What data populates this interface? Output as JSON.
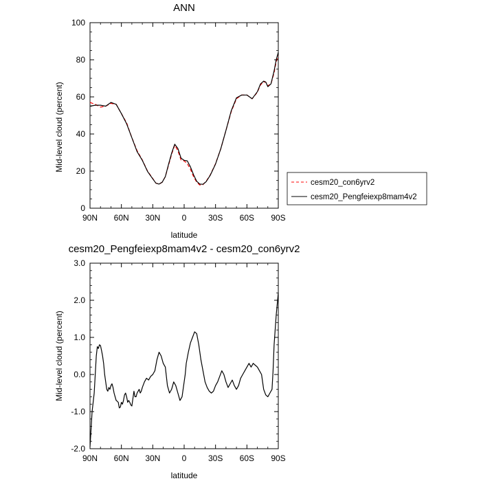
{
  "chart_data": [
    {
      "type": "line",
      "title": "ANN",
      "xlabel": "latitude",
      "ylabel": "Mid-level cloud (percent)",
      "xlim": [
        90,
        -90
      ],
      "ylim": [
        0,
        100
      ],
      "xticks": [
        90,
        60,
        30,
        0,
        -30,
        -60,
        -90
      ],
      "xtick_labels": [
        "90N",
        "60N",
        "30N",
        "0",
        "30S",
        "60S",
        "90S"
      ],
      "yticks": [
        0,
        20,
        40,
        60,
        80,
        100
      ],
      "ytick_labels": [
        "0",
        "20",
        "40",
        "60",
        "80",
        "100"
      ],
      "grid": false,
      "legend": "right, outside plot area",
      "series": [
        {
          "name": "cesm20_con6yrv2",
          "color": "#ff0000",
          "dash": "dashed",
          "x": [
            90,
            85,
            80,
            75,
            70,
            65,
            60,
            55,
            50,
            45,
            40,
            35,
            30,
            27,
            24,
            21,
            18,
            15,
            12,
            9,
            6,
            3,
            0,
            -3,
            -6,
            -9,
            -12,
            -15,
            -18,
            -21,
            -25,
            -30,
            -35,
            -40,
            -45,
            -50,
            -55,
            -60,
            -65,
            -70,
            -73,
            -76,
            -78,
            -80,
            -83,
            -86,
            -88,
            -90
          ],
          "y": [
            57,
            56,
            54.5,
            55,
            56.5,
            56,
            51,
            46,
            38,
            31,
            26,
            20,
            16,
            13.5,
            13,
            14,
            17,
            23,
            29,
            34,
            31,
            26,
            25.5,
            24,
            21,
            17,
            14,
            12.5,
            12.7,
            14.5,
            18,
            24,
            32,
            42,
            52,
            59,
            61,
            61,
            59,
            62.5,
            66.5,
            68,
            68,
            66,
            67,
            73,
            79,
            82
          ]
        },
        {
          "name": "cesm20_Pengfeiexp8mam4v2",
          "color": "#000000",
          "dash": "solid",
          "x": [
            90,
            85,
            80,
            75,
            70,
            65,
            60,
            55,
            50,
            45,
            40,
            35,
            30,
            27,
            24,
            21,
            18,
            15,
            12,
            9,
            6,
            3,
            0,
            -3,
            -6,
            -9,
            -12,
            -15,
            -18,
            -21,
            -25,
            -30,
            -35,
            -40,
            -45,
            -50,
            -55,
            -60,
            -65,
            -70,
            -73,
            -76,
            -78,
            -80,
            -83,
            -86,
            -88,
            -90
          ],
          "y": [
            55,
            55.5,
            55.5,
            55,
            57,
            56,
            51,
            45.5,
            38,
            30.5,
            25.8,
            19.8,
            15.8,
            13.5,
            13,
            14,
            17,
            23.5,
            29.6,
            34.5,
            32.2,
            27,
            25.8,
            25.5,
            22.3,
            18,
            14.5,
            13,
            12.9,
            14.3,
            17.8,
            23.8,
            32,
            42,
            52.5,
            59.5,
            61,
            61,
            59,
            62.8,
            67,
            68.5,
            68,
            65.5,
            67,
            74,
            80,
            84
          ]
        }
      ]
    },
    {
      "type": "line",
      "title": "cesm20_Pengfeiexp8mam4v2 - cesm20_con6yrv2",
      "xlabel": "latitude",
      "ylabel": "Mid-level cloud (percent)",
      "xlim": [
        90,
        -90
      ],
      "ylim": [
        -2.0,
        3.0
      ],
      "xticks": [
        90,
        60,
        30,
        0,
        -30,
        -60,
        -90
      ],
      "xtick_labels": [
        "90N",
        "60N",
        "30N",
        "0",
        "30S",
        "60S",
        "90S"
      ],
      "yticks": [
        -2.0,
        -1.0,
        0.0,
        1.0,
        2.0,
        3.0
      ],
      "ytick_labels": [
        "-2.0",
        "-1.0",
        "0.0",
        "1.0",
        "2.0",
        "3.0"
      ],
      "grid": false,
      "series": [
        {
          "color": "#000000",
          "dash": "solid",
          "x": [
            90,
            88,
            86,
            85,
            84,
            83,
            82,
            81,
            80,
            79,
            78,
            77,
            76,
            75,
            74,
            73,
            72,
            71,
            70,
            69,
            68,
            67,
            66,
            65,
            64,
            63,
            62,
            61,
            60,
            59,
            58,
            57,
            56,
            55,
            54,
            53,
            52,
            51,
            50,
            49,
            48,
            47,
            46,
            45,
            44,
            43,
            42,
            41,
            40,
            38,
            36,
            34,
            32,
            30,
            28,
            26,
            24,
            22,
            20,
            18,
            16,
            14,
            12,
            10,
            8,
            6,
            4,
            2,
            1,
            0,
            -1,
            -2,
            -4,
            -6,
            -8,
            -10,
            -12,
            -14,
            -16,
            -18,
            -20,
            -22,
            -24,
            -26,
            -28,
            -30,
            -32,
            -34,
            -36,
            -38,
            -40,
            -42,
            -44,
            -46,
            -48,
            -50,
            -52,
            -54,
            -56,
            -58,
            -60,
            -62,
            -64,
            -66,
            -68,
            -70,
            -72,
            -74,
            -76,
            -78,
            -80,
            -82,
            -84,
            -85,
            -86,
            -87,
            -88,
            -89,
            -90
          ],
          "y": [
            -1.95,
            -1.0,
            -0.5,
            0.0,
            0.5,
            0.75,
            0.7,
            0.8,
            0.78,
            0.65,
            0.5,
            0.3,
            0.0,
            -0.2,
            -0.4,
            -0.45,
            -0.35,
            -0.4,
            -0.3,
            -0.25,
            -0.35,
            -0.5,
            -0.6,
            -0.7,
            -0.72,
            -0.75,
            -0.9,
            -0.88,
            -0.75,
            -0.8,
            -0.7,
            -0.55,
            -0.5,
            -0.6,
            -0.75,
            -0.7,
            -0.75,
            -0.82,
            -0.85,
            -0.65,
            -0.45,
            -0.6,
            -0.6,
            -0.5,
            -0.45,
            -0.4,
            -0.5,
            -0.45,
            -0.35,
            -0.2,
            -0.1,
            -0.15,
            -0.05,
            0.0,
            0.1,
            0.4,
            0.6,
            0.5,
            0.3,
            0.2,
            -0.3,
            -0.5,
            -0.4,
            -0.2,
            -0.3,
            -0.5,
            -0.7,
            -0.6,
            -0.4,
            -0.2,
            0.0,
            0.3,
            0.6,
            0.85,
            1.0,
            1.15,
            1.1,
            0.8,
            0.4,
            0.1,
            -0.2,
            -0.35,
            -0.45,
            -0.5,
            -0.45,
            -0.3,
            -0.2,
            -0.05,
            0.1,
            0.0,
            -0.2,
            -0.35,
            -0.25,
            -0.15,
            -0.3,
            -0.4,
            -0.3,
            -0.1,
            0.0,
            0.1,
            0.2,
            0.3,
            0.2,
            0.3,
            0.25,
            0.2,
            0.1,
            0.0,
            -0.4,
            -0.55,
            -0.6,
            -0.5,
            -0.4,
            0.1,
            0.8,
            1.2,
            1.6,
            1.9,
            2.2
          ]
        }
      ]
    }
  ]
}
